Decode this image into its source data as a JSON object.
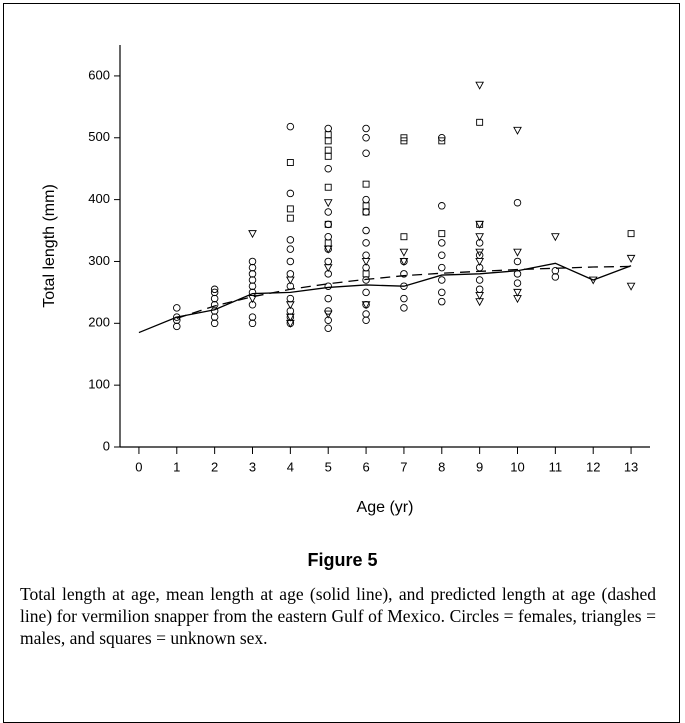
{
  "chart_data": {
    "type": "scatter",
    "xlabel": "Age (yr)",
    "ylabel": "Total length (mm)",
    "xlim": [
      -0.5,
      13.5
    ],
    "xticks": [
      0,
      1,
      2,
      3,
      4,
      5,
      6,
      7,
      8,
      9,
      10,
      11,
      12,
      13
    ],
    "ylim": [
      0,
      650
    ],
    "yticks": [
      0,
      100,
      200,
      300,
      400,
      500,
      600
    ],
    "color": "#000000",
    "series": [
      {
        "marker": "circle",
        "x": [
          1,
          1,
          1,
          1,
          2,
          2,
          2,
          2,
          2,
          2,
          2,
          3,
          3,
          3,
          3,
          3,
          3,
          3,
          3,
          3,
          4,
          4,
          4,
          4,
          4,
          4,
          4,
          4,
          4,
          4,
          4,
          5,
          5,
          5,
          5,
          5,
          5,
          5,
          5,
          5,
          5,
          5,
          5,
          5,
          6,
          6,
          6,
          6,
          6,
          6,
          6,
          6,
          6,
          6,
          6,
          6,
          6,
          6,
          7,
          7,
          7,
          7,
          7,
          8,
          8,
          8,
          8,
          8,
          8,
          8,
          8,
          9,
          9,
          9,
          9,
          9,
          10,
          10,
          10,
          10,
          11,
          11
        ],
        "values": [
          195,
          205,
          210,
          225,
          200,
          210,
          220,
          230,
          240,
          250,
          255,
          200,
          210,
          230,
          250,
          260,
          270,
          280,
          290,
          300,
          200,
          210,
          220,
          240,
          260,
          280,
          300,
          320,
          335,
          410,
          518,
          192,
          205,
          220,
          240,
          260,
          280,
          300,
          320,
          340,
          360,
          380,
          450,
          515,
          205,
          215,
          230,
          250,
          270,
          290,
          310,
          330,
          350,
          380,
          400,
          475,
          500,
          515,
          225,
          240,
          260,
          280,
          300,
          235,
          250,
          270,
          290,
          310,
          330,
          390,
          500,
          255,
          270,
          290,
          310,
          330,
          265,
          280,
          300,
          395,
          275,
          285
        ]
      },
      {
        "marker": "triangle",
        "x": [
          3,
          3,
          4,
          4,
          4,
          4,
          5,
          5,
          5,
          5,
          6,
          6,
          7,
          7,
          9,
          9,
          9,
          9,
          9,
          9,
          9,
          10,
          10,
          10,
          10,
          11,
          12,
          13,
          13
        ],
        "values": [
          345,
          240,
          200,
          210,
          230,
          270,
          215,
          290,
          320,
          395,
          230,
          300,
          300,
          315,
          235,
          245,
          300,
          315,
          340,
          360,
          585,
          240,
          250,
          315,
          512,
          340,
          270,
          260,
          305
        ]
      },
      {
        "marker": "square",
        "x": [
          4,
          4,
          4,
          5,
          5,
          5,
          5,
          5,
          5,
          5,
          6,
          6,
          6,
          6,
          7,
          7,
          7,
          8,
          8,
          9,
          9,
          13
        ],
        "values": [
          385,
          370,
          460,
          420,
          470,
          480,
          495,
          505,
          360,
          330,
          425,
          390,
          380,
          280,
          500,
          495,
          340,
          345,
          495,
          525,
          360,
          345
        ]
      },
      {
        "marker": "line",
        "dash": false,
        "x": [
          0,
          1,
          2,
          3,
          4,
          5,
          6,
          7,
          8,
          9,
          10,
          11,
          12,
          13
        ],
        "values": [
          185,
          210,
          222,
          248,
          250,
          258,
          262,
          260,
          278,
          280,
          285,
          297,
          270,
          293
        ]
      },
      {
        "marker": "line",
        "dash": true,
        "x": [
          1,
          2,
          3,
          4,
          5,
          6,
          7,
          8,
          9,
          10,
          11,
          12,
          13
        ],
        "values": [
          208,
          228,
          243,
          255,
          264,
          271,
          277,
          281,
          284,
          287,
          289,
          291,
          292
        ]
      }
    ]
  },
  "figure_label": "Figure 5",
  "caption": "Total length at age, mean length at age (solid line), and predicted length at age (dashed line) for vermilion snapper from the eastern Gulf of Mexico. Circles = females, triangles = males, and squares = unknown sex."
}
